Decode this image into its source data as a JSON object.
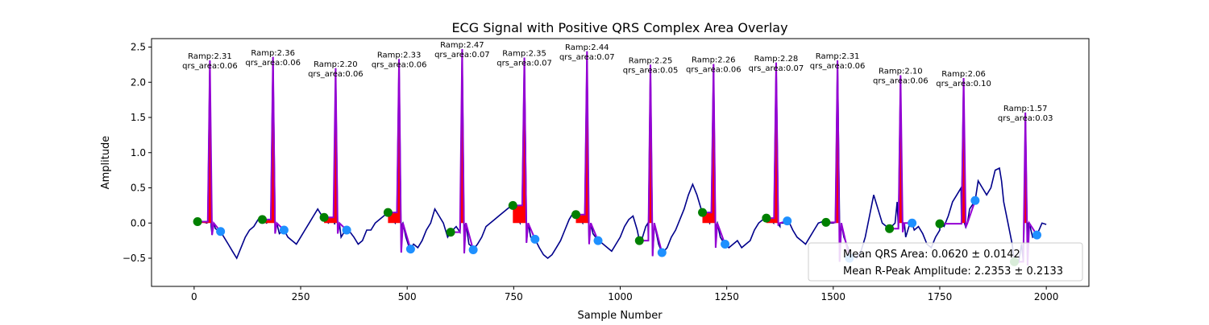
{
  "chart_data": {
    "type": "line",
    "title": "ECG Signal with Positive QRS Complex Area Overlay",
    "xlabel": "Sample Number",
    "ylabel": "Amplitude",
    "xlim": [
      -100,
      2100
    ],
    "ylim": [
      -0.9,
      2.62
    ],
    "x_ticks": [
      0,
      250,
      500,
      750,
      1000,
      1250,
      1500,
      1750,
      2000
    ],
    "y_ticks": [
      -0.5,
      0.0,
      0.5,
      1.0,
      1.5,
      2.0,
      2.5
    ],
    "y_tick_labels": [
      "−0.5",
      "0.0",
      "0.5",
      "1.0",
      "1.5",
      "2.0",
      "2.5"
    ],
    "colors": {
      "signal": "#00008b",
      "qrs_segment": "#9400d3",
      "area_fill": "#ff0000",
      "q_marker": "#008000",
      "s_marker": "#1e90ff"
    },
    "signal": [
      [
        0,
        0.05
      ],
      [
        10,
        0.03
      ],
      [
        20,
        0.02
      ],
      [
        30,
        0.0
      ],
      [
        40,
        -0.05
      ],
      [
        50,
        -0.08
      ],
      [
        60,
        -0.12
      ],
      [
        70,
        -0.2
      ],
      [
        80,
        -0.3
      ],
      [
        90,
        -0.4
      ],
      [
        100,
        -0.5
      ],
      [
        110,
        -0.35
      ],
      [
        120,
        -0.2
      ],
      [
        130,
        -0.1
      ],
      [
        140,
        -0.05
      ],
      [
        150,
        0.05
      ],
      [
        160,
        0.05
      ],
      [
        170,
        0.0
      ],
      [
        190,
        -0.02
      ],
      [
        200,
        -0.15
      ],
      [
        210,
        -0.1
      ],
      [
        220,
        -0.2
      ],
      [
        230,
        -0.25
      ],
      [
        240,
        -0.3
      ],
      [
        250,
        -0.2
      ],
      [
        260,
        -0.1
      ],
      [
        270,
        0.0
      ],
      [
        280,
        0.1
      ],
      [
        290,
        0.2
      ],
      [
        300,
        0.1
      ],
      [
        315,
        0.0
      ],
      [
        330,
        -0.02
      ],
      [
        345,
        -0.2
      ],
      [
        355,
        -0.1
      ],
      [
        365,
        -0.12
      ],
      [
        375,
        -0.2
      ],
      [
        385,
        -0.3
      ],
      [
        395,
        -0.25
      ],
      [
        405,
        -0.1
      ],
      [
        415,
        -0.1
      ],
      [
        425,
        0.0
      ],
      [
        435,
        0.05
      ],
      [
        445,
        0.1
      ],
      [
        455,
        0.15
      ],
      [
        465,
        0.05
      ],
      [
        472,
        0.0
      ],
      [
        487,
        -0.03
      ],
      [
        497,
        -0.2
      ],
      [
        505,
        -0.35
      ],
      [
        515,
        -0.3
      ],
      [
        525,
        -0.35
      ],
      [
        535,
        -0.25
      ],
      [
        545,
        -0.1
      ],
      [
        555,
        0.0
      ],
      [
        565,
        0.2
      ],
      [
        575,
        0.1
      ],
      [
        585,
        0.0
      ],
      [
        595,
        -0.2
      ],
      [
        602,
        -0.13
      ],
      [
        615,
        -0.05
      ],
      [
        625,
        0.0
      ],
      [
        635,
        -0.05
      ],
      [
        645,
        -0.3
      ],
      [
        655,
        -0.35
      ],
      [
        665,
        -0.3
      ],
      [
        675,
        -0.2
      ],
      [
        685,
        -0.05
      ],
      [
        695,
        0.0
      ],
      [
        705,
        0.05
      ],
      [
        715,
        0.1
      ],
      [
        725,
        0.15
      ],
      [
        735,
        0.2
      ],
      [
        745,
        0.25
      ],
      [
        755,
        0.1
      ],
      [
        765,
        0.0
      ],
      [
        780,
        -0.05
      ],
      [
        790,
        -0.2
      ],
      [
        800,
        -0.25
      ],
      [
        810,
        -0.35
      ],
      [
        820,
        -0.45
      ],
      [
        830,
        -0.5
      ],
      [
        840,
        -0.45
      ],
      [
        850,
        -0.35
      ],
      [
        860,
        -0.25
      ],
      [
        870,
        -0.1
      ],
      [
        880,
        0.05
      ],
      [
        890,
        0.15
      ],
      [
        900,
        0.12
      ],
      [
        912,
        0.0
      ],
      [
        926,
        -0.05
      ],
      [
        936,
        -0.15
      ],
      [
        950,
        -0.25
      ],
      [
        960,
        -0.3
      ],
      [
        970,
        -0.35
      ],
      [
        980,
        -0.4
      ],
      [
        990,
        -0.3
      ],
      [
        1000,
        -0.2
      ],
      [
        1010,
        -0.05
      ],
      [
        1020,
        0.05
      ],
      [
        1030,
        0.1
      ],
      [
        1040,
        -0.1
      ],
      [
        1050,
        -0.25
      ],
      [
        1060,
        -0.05
      ],
      [
        1065,
        0.0
      ],
      [
        1080,
        -0.05
      ],
      [
        1090,
        -0.3
      ],
      [
        1100,
        -0.42
      ],
      [
        1110,
        -0.35
      ],
      [
        1120,
        -0.2
      ],
      [
        1130,
        -0.1
      ],
      [
        1140,
        0.05
      ],
      [
        1150,
        0.2
      ],
      [
        1160,
        0.4
      ],
      [
        1170,
        0.55
      ],
      [
        1180,
        0.4
      ],
      [
        1190,
        0.2
      ],
      [
        1200,
        0.1
      ],
      [
        1210,
        0.0
      ],
      [
        1225,
        -0.05
      ],
      [
        1235,
        -0.2
      ],
      [
        1245,
        -0.3
      ],
      [
        1255,
        -0.35
      ],
      [
        1265,
        -0.3
      ],
      [
        1275,
        -0.25
      ],
      [
        1285,
        -0.35
      ],
      [
        1295,
        -0.3
      ],
      [
        1305,
        -0.25
      ],
      [
        1315,
        -0.1
      ],
      [
        1325,
        0.0
      ],
      [
        1335,
        0.05
      ],
      [
        1345,
        0.08
      ],
      [
        1352,
        0.05
      ],
      [
        1360,
        0.0
      ],
      [
        1375,
        -0.05
      ],
      [
        1385,
        0.0
      ],
      [
        1395,
        0.03
      ],
      [
        1405,
        -0.1
      ],
      [
        1415,
        -0.2
      ],
      [
        1425,
        -0.25
      ],
      [
        1435,
        -0.3
      ],
      [
        1445,
        -0.2
      ],
      [
        1455,
        -0.1
      ],
      [
        1465,
        0.0
      ],
      [
        1475,
        0.02
      ],
      [
        1485,
        0.0
      ],
      [
        1500,
        0.0
      ],
      [
        1515,
        -0.05
      ],
      [
        1525,
        -0.2
      ],
      [
        1535,
        -0.35
      ],
      [
        1545,
        -0.45
      ],
      [
        1555,
        -0.5
      ],
      [
        1565,
        -0.4
      ],
      [
        1575,
        -0.2
      ],
      [
        1585,
        0.1
      ],
      [
        1595,
        0.4
      ],
      [
        1605,
        0.2
      ],
      [
        1615,
        0.0
      ],
      [
        1625,
        -0.05
      ],
      [
        1632,
        -0.08
      ],
      [
        1645,
        0.0
      ],
      [
        1650,
        0.3
      ],
      [
        1660,
        0.5
      ],
      [
        1665,
        0.0
      ],
      [
        1670,
        -0.2
      ],
      [
        1680,
        0.0
      ],
      [
        1690,
        -0.1
      ],
      [
        1700,
        -0.05
      ],
      [
        1710,
        -0.15
      ],
      [
        1720,
        -0.3
      ],
      [
        1730,
        -0.35
      ],
      [
        1740,
        -0.2
      ],
      [
        1750,
        -0.1
      ],
      [
        1760,
        -0.05
      ],
      [
        1770,
        0.1
      ],
      [
        1780,
        0.3
      ],
      [
        1790,
        0.4
      ],
      [
        1800,
        0.5
      ],
      [
        1808,
        0.0
      ],
      [
        1820,
        0.2
      ],
      [
        1833,
        0.32
      ],
      [
        1840,
        0.6
      ],
      [
        1850,
        0.5
      ],
      [
        1860,
        0.4
      ],
      [
        1870,
        0.5
      ],
      [
        1880,
        0.75
      ],
      [
        1890,
        0.78
      ],
      [
        1895,
        0.6
      ],
      [
        1900,
        0.3
      ],
      [
        1910,
        0.0
      ],
      [
        1920,
        -0.3
      ],
      [
        1928,
        -0.5
      ],
      [
        1935,
        -0.55
      ],
      [
        1942,
        -0.3
      ],
      [
        1948,
        0.0
      ],
      [
        1958,
        0.0
      ],
      [
        1968,
        -0.2
      ],
      [
        1978,
        -0.15
      ],
      [
        1990,
        0.0
      ],
      [
        2000,
        -0.02
      ]
    ],
    "beats": [
      {
        "q": [
          8,
          0.02
        ],
        "r": [
          37,
          2.31
        ],
        "s": [
          62,
          -0.12
        ],
        "label_ramp": "Ramp:2.31",
        "label_area": "qrs_area:0.06"
      },
      {
        "q": [
          160,
          0.05
        ],
        "r": [
          185,
          2.36
        ],
        "s": [
          211,
          -0.1
        ],
        "label_ramp": "Ramp:2.36",
        "label_area": "qrs_area:0.06"
      },
      {
        "q": [
          305,
          0.08
        ],
        "r": [
          332,
          2.2
        ],
        "s": [
          358,
          -0.1
        ],
        "label_ramp": "Ramp:2.20",
        "label_area": "qrs_area:0.06"
      },
      {
        "q": [
          455,
          0.15
        ],
        "r": [
          481,
          2.33
        ],
        "s": [
          508,
          -0.37
        ],
        "label_ramp": "Ramp:2.33",
        "label_area": "qrs_area:0.06"
      },
      {
        "q": [
          602,
          -0.13
        ],
        "r": [
          629,
          2.47
        ],
        "s": [
          655,
          -0.38
        ],
        "label_ramp": "Ramp:2.47",
        "label_area": "qrs_area:0.07"
      },
      {
        "q": [
          748,
          0.25
        ],
        "r": [
          775,
          2.35
        ],
        "s": [
          800,
          -0.23
        ],
        "label_ramp": "Ramp:2.35",
        "label_area": "qrs_area:0.07"
      },
      {
        "q": [
          896,
          0.12
        ],
        "r": [
          922,
          2.44
        ],
        "s": [
          948,
          -0.25
        ],
        "label_ramp": "Ramp:2.44",
        "label_area": "qrs_area:0.07"
      },
      {
        "q": [
          1045,
          -0.25
        ],
        "r": [
          1071,
          2.25
        ],
        "s": [
          1098,
          -0.42
        ],
        "label_ramp": "Ramp:2.25",
        "label_area": "qrs_area:0.05"
      },
      {
        "q": [
          1193,
          0.15
        ],
        "r": [
          1219,
          2.26
        ],
        "s": [
          1246,
          -0.3
        ],
        "label_ramp": "Ramp:2.26",
        "label_area": "qrs_area:0.06"
      },
      {
        "q": [
          1343,
          0.07
        ],
        "r": [
          1366,
          2.28
        ],
        "s": [
          1392,
          0.03
        ],
        "label_ramp": "Ramp:2.28",
        "label_area": "qrs_area:0.07"
      },
      {
        "q": [
          1483,
          0.01
        ],
        "r": [
          1510,
          2.31
        ],
        "s": [
          1538,
          -0.5
        ],
        "label_ramp": "Ramp:2.31",
        "label_area": "qrs_area:0.06"
      },
      {
        "q": [
          1632,
          -0.08
        ],
        "r": [
          1658,
          2.1
        ],
        "s": [
          1685,
          0.0
        ],
        "label_ramp": "Ramp:2.10",
        "label_area": "qrs_area:0.06"
      },
      {
        "q": [
          1750,
          -0.01
        ],
        "r": [
          1806,
          2.06
        ],
        "s": [
          1833,
          0.32
        ],
        "label_ramp": "Ramp:2.06",
        "label_area": "qrs_area:0.10"
      },
      {
        "q": [
          1925,
          -0.55
        ],
        "r": [
          1951,
          1.57
        ],
        "s": [
          1978,
          -0.17
        ],
        "label_ramp": "Ramp:1.57",
        "label_area": "qrs_area:0.03"
      }
    ],
    "legend": {
      "placement": "lower-right",
      "entries": [
        "Mean QRS Area: 0.0620 ± 0.0142",
        "Mean R-Peak Amplitude: 2.2353 ± 0.2133"
      ]
    }
  }
}
